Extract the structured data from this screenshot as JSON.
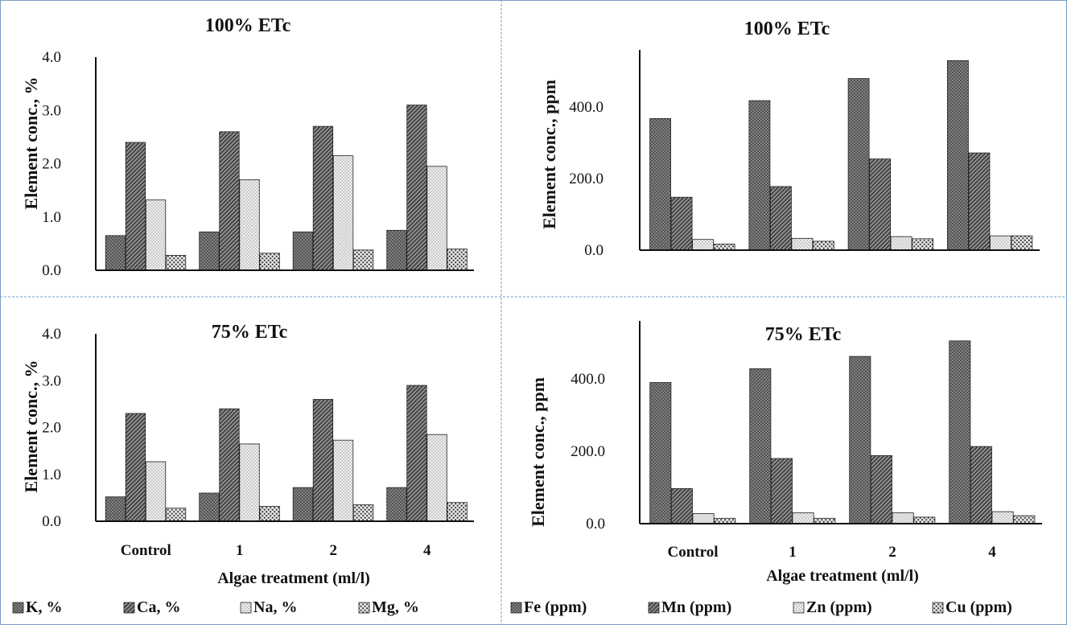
{
  "chart_data": [
    {
      "type": "bar",
      "title": "100% ETc",
      "ylabel": "Element conc., %",
      "xlabel": "",
      "categories": [
        "Control",
        "1",
        "2",
        "4"
      ],
      "show_categories": false,
      "ylim": [
        0,
        4
      ],
      "yticks": [
        "0.0",
        "1.0",
        "2.0",
        "3.0",
        "4.0"
      ],
      "series": [
        {
          "name": "K, %",
          "values": [
            0.65,
            0.72,
            0.72,
            0.75
          ]
        },
        {
          "name": "Ca, %",
          "values": [
            2.4,
            2.6,
            2.7,
            3.1
          ]
        },
        {
          "name": "Na, %",
          "values": [
            1.32,
            1.7,
            2.15,
            1.95
          ]
        },
        {
          "name": "Mg, %",
          "values": [
            0.28,
            0.32,
            0.38,
            0.4
          ]
        }
      ]
    },
    {
      "type": "bar",
      "title": "100% ETc",
      "ylabel": "Element conc., ppm",
      "xlabel": "",
      "categories": [
        "Control",
        "1",
        "2",
        "4"
      ],
      "show_categories": false,
      "ylim": [
        0,
        560
      ],
      "yticks": [
        "0.0",
        "200.0",
        "400.0"
      ],
      "series": [
        {
          "name": "Fe (ppm)",
          "values": [
            368,
            418,
            480,
            530
          ]
        },
        {
          "name": "Mn (ppm)",
          "values": [
            148,
            178,
            255,
            272
          ]
        },
        {
          "name": "Zn (ppm)",
          "values": [
            30,
            33,
            38,
            40
          ]
        },
        {
          "name": "Cu (ppm)",
          "values": [
            17,
            25,
            32,
            40
          ]
        }
      ]
    },
    {
      "type": "bar",
      "title": "75% ETc",
      "ylabel": "Element conc., %",
      "xlabel": "Algae treatment (ml/l)",
      "categories": [
        "Control",
        "1",
        "2",
        "4"
      ],
      "show_categories": true,
      "ylim": [
        0,
        4
      ],
      "yticks": [
        "0.0",
        "1.0",
        "2.0",
        "3.0",
        "4.0"
      ],
      "series": [
        {
          "name": "K, %",
          "values": [
            0.52,
            0.6,
            0.72,
            0.72
          ]
        },
        {
          "name": "Ca, %",
          "values": [
            2.3,
            2.4,
            2.6,
            2.9
          ]
        },
        {
          "name": "Na, %",
          "values": [
            1.27,
            1.65,
            1.73,
            1.85
          ]
        },
        {
          "name": "Mg, %",
          "values": [
            0.28,
            0.32,
            0.35,
            0.4
          ]
        }
      ]
    },
    {
      "type": "bar",
      "title": "75% ETc",
      "ylabel": "Element conc., ppm",
      "xlabel": "Algae treatment (ml/l)",
      "categories": [
        "Control",
        "1",
        "2",
        "4"
      ],
      "show_categories": true,
      "ylim": [
        0,
        560
      ],
      "yticks": [
        "0.0",
        "200.0",
        "400.0"
      ],
      "series": [
        {
          "name": "Fe (ppm)",
          "values": [
            390,
            428,
            462,
            505
          ]
        },
        {
          "name": "Mn (ppm)",
          "values": [
            97,
            180,
            188,
            213
          ]
        },
        {
          "name": "Zn (ppm)",
          "values": [
            28,
            30,
            30,
            33
          ]
        },
        {
          "name": "Cu (ppm)",
          "values": [
            15,
            15,
            18,
            22
          ]
        }
      ]
    }
  ],
  "legend_left": [
    "K, %",
    "Ca, %",
    "Na, %",
    "Mg, %"
  ],
  "legend_right": [
    "Fe (ppm)",
    "Mn (ppm)",
    "Zn (ppm)",
    "Cu (ppm)"
  ],
  "colors": {
    "panel_border": "#7a9ec4",
    "axis": "#111111",
    "bar_outline": "#222222",
    "fill_1": "#555555",
    "fill_2": "#777777",
    "fill_3": "#e2e2e2",
    "fill_4": "#cfcfcf"
  }
}
